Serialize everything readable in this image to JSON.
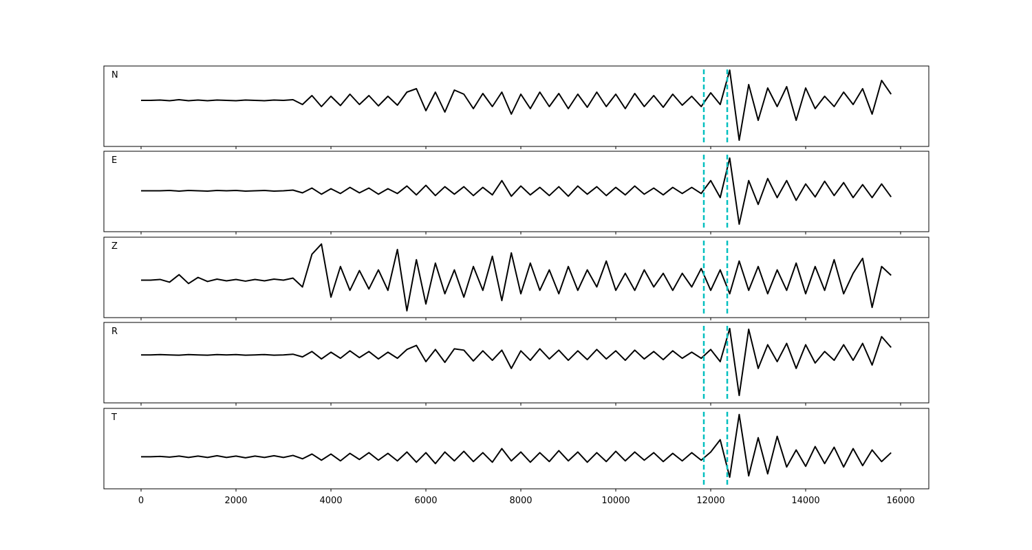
{
  "chart_data": {
    "type": "line",
    "x": [
      0,
      200,
      400,
      600,
      800,
      1000,
      1200,
      1400,
      1600,
      1800,
      2000,
      2200,
      2400,
      2600,
      2800,
      3000,
      3200,
      3400,
      3600,
      3800,
      4000,
      4200,
      4400,
      4600,
      4800,
      5000,
      5200,
      5400,
      5600,
      5800,
      6000,
      6200,
      6400,
      6600,
      6800,
      7000,
      7200,
      7400,
      7600,
      7800,
      8000,
      8200,
      8400,
      8600,
      8800,
      9000,
      9200,
      9400,
      9600,
      9800,
      10000,
      10200,
      10400,
      10600,
      10800,
      11000,
      11200,
      11400,
      11600,
      11800,
      12000,
      12200,
      12400,
      12600,
      12800,
      13000,
      13200,
      13400,
      13600,
      13800,
      14000,
      14200,
      14400,
      14600,
      14800,
      15000,
      15200,
      15400,
      15600,
      15800
    ],
    "xlim": [
      -783,
      16594
    ],
    "xticks": [
      0,
      2000,
      4000,
      6000,
      8000,
      10000,
      12000,
      14000,
      16000
    ],
    "line_color": "#000000",
    "markers": [
      11855,
      12348
    ],
    "marker_color": "#00bfbf",
    "series": [
      {
        "name": "N",
        "ylim": [
          -1.34,
          1.0
        ],
        "values": [
          0,
          0,
          0.01,
          -0.01,
          0.02,
          -0.01,
          0.01,
          -0.01,
          0.01,
          0,
          -0.01,
          0.01,
          0,
          -0.01,
          0.01,
          0,
          0.02,
          -0.12,
          0.14,
          -0.18,
          0.12,
          -0.15,
          0.18,
          -0.12,
          0.14,
          -0.16,
          0.12,
          -0.14,
          0.24,
          0.34,
          -0.3,
          0.24,
          -0.34,
          0.3,
          0.18,
          -0.24,
          0.2,
          -0.18,
          0.24,
          -0.4,
          0.18,
          -0.24,
          0.24,
          -0.18,
          0.2,
          -0.24,
          0.18,
          -0.2,
          0.24,
          -0.18,
          0.18,
          -0.24,
          0.2,
          -0.18,
          0.14,
          -0.2,
          0.18,
          -0.14,
          0.12,
          -0.18,
          0.22,
          -0.12,
          0.88,
          -1.16,
          0.46,
          -0.58,
          0.36,
          -0.18,
          0.4,
          -0.58,
          0.36,
          -0.24,
          0.12,
          -0.18,
          0.24,
          -0.12,
          0.34,
          -0.4,
          0.58,
          0.18
        ]
      },
      {
        "name": "E",
        "ylim": [
          -1.2,
          1.16
        ],
        "values": [
          0,
          0,
          0,
          0.01,
          -0.01,
          0.01,
          0,
          -0.01,
          0.01,
          0,
          0.01,
          -0.01,
          0,
          0.01,
          -0.01,
          0,
          0.02,
          -0.06,
          0.08,
          -0.1,
          0.06,
          -0.08,
          0.1,
          -0.06,
          0.08,
          -0.1,
          0.06,
          -0.08,
          0.14,
          -0.12,
          0.16,
          -0.14,
          0.12,
          -0.1,
          0.12,
          -0.14,
          0.1,
          -0.12,
          0.3,
          -0.16,
          0.14,
          -0.12,
          0.1,
          -0.14,
          0.12,
          -0.16,
          0.14,
          -0.1,
          0.12,
          -0.14,
          0.1,
          -0.12,
          0.14,
          -0.1,
          0.08,
          -0.12,
          0.1,
          -0.08,
          0.1,
          -0.08,
          0.3,
          -0.2,
          0.96,
          -0.98,
          0.3,
          -0.4,
          0.36,
          -0.2,
          0.3,
          -0.28,
          0.2,
          -0.18,
          0.28,
          -0.14,
          0.24,
          -0.2,
          0.18,
          -0.2,
          0.2,
          -0.18
        ]
      },
      {
        "name": "Z",
        "ylim": [
          -1.1,
          1.26
        ],
        "values": [
          0,
          0,
          0.02,
          -0.06,
          0.16,
          -0.1,
          0.08,
          -0.04,
          0.03,
          -0.02,
          0.02,
          -0.03,
          0.02,
          -0.02,
          0.03,
          0,
          0.06,
          -0.2,
          0.76,
          1.06,
          -0.5,
          0.4,
          -0.3,
          0.28,
          -0.26,
          0.3,
          -0.3,
          0.9,
          -0.9,
          0.6,
          -0.7,
          0.5,
          -0.4,
          0.3,
          -0.5,
          0.4,
          -0.3,
          0.7,
          -0.6,
          0.8,
          -0.4,
          0.5,
          -0.3,
          0.3,
          -0.4,
          0.4,
          -0.3,
          0.3,
          -0.2,
          0.56,
          -0.3,
          0.2,
          -0.3,
          0.3,
          -0.2,
          0.2,
          -0.3,
          0.2,
          -0.2,
          0.34,
          -0.3,
          0.3,
          -0.4,
          0.56,
          -0.3,
          0.4,
          -0.4,
          0.3,
          -0.3,
          0.5,
          -0.4,
          0.4,
          -0.3,
          0.6,
          -0.4,
          0.2,
          0.64,
          -0.8,
          0.4,
          0.14
        ]
      },
      {
        "name": "R",
        "ylim": [
          -1.42,
          0.96
        ],
        "values": [
          0,
          0,
          0.01,
          0,
          -0.01,
          0.01,
          0,
          -0.01,
          0.01,
          0,
          0.01,
          -0.01,
          0,
          0.01,
          -0.01,
          0,
          0.02,
          -0.06,
          0.1,
          -0.12,
          0.08,
          -0.1,
          0.12,
          -0.08,
          0.1,
          -0.12,
          0.08,
          -0.1,
          0.16,
          0.28,
          -0.2,
          0.16,
          -0.22,
          0.18,
          0.14,
          -0.18,
          0.12,
          -0.16,
          0.14,
          -0.4,
          0.12,
          -0.16,
          0.18,
          -0.12,
          0.14,
          -0.16,
          0.12,
          -0.14,
          0.16,
          -0.12,
          0.12,
          -0.16,
          0.14,
          -0.12,
          0.1,
          -0.14,
          0.12,
          -0.1,
          0.08,
          -0.1,
          0.16,
          -0.2,
          0.78,
          -1.2,
          0.76,
          -0.4,
          0.3,
          -0.2,
          0.34,
          -0.4,
          0.3,
          -0.24,
          0.1,
          -0.16,
          0.3,
          -0.16,
          0.34,
          -0.3,
          0.54,
          0.22
        ]
      },
      {
        "name": "T",
        "ylim": [
          -0.94,
          1.42
        ],
        "values": [
          0,
          0,
          0.01,
          -0.01,
          0.02,
          -0.02,
          0.02,
          -0.02,
          0.03,
          -0.02,
          0.02,
          -0.03,
          0.02,
          -0.02,
          0.03,
          -0.02,
          0.04,
          -0.06,
          0.08,
          -0.1,
          0.08,
          -0.12,
          0.1,
          -0.08,
          0.12,
          -0.1,
          0.1,
          -0.12,
          0.14,
          -0.16,
          0.12,
          -0.2,
          0.14,
          -0.12,
          0.16,
          -0.14,
          0.12,
          -0.16,
          0.24,
          -0.12,
          0.14,
          -0.16,
          0.12,
          -0.14,
          0.18,
          -0.12,
          0.14,
          -0.16,
          0.12,
          -0.14,
          0.16,
          -0.12,
          0.14,
          -0.1,
          0.12,
          -0.14,
          0.1,
          -0.12,
          0.12,
          -0.1,
          0.14,
          0.5,
          -0.6,
          1.24,
          -0.56,
          0.56,
          -0.5,
          0.6,
          -0.3,
          0.2,
          -0.28,
          0.3,
          -0.2,
          0.28,
          -0.3,
          0.24,
          -0.26,
          0.2,
          -0.14,
          0.12
        ]
      }
    ]
  }
}
